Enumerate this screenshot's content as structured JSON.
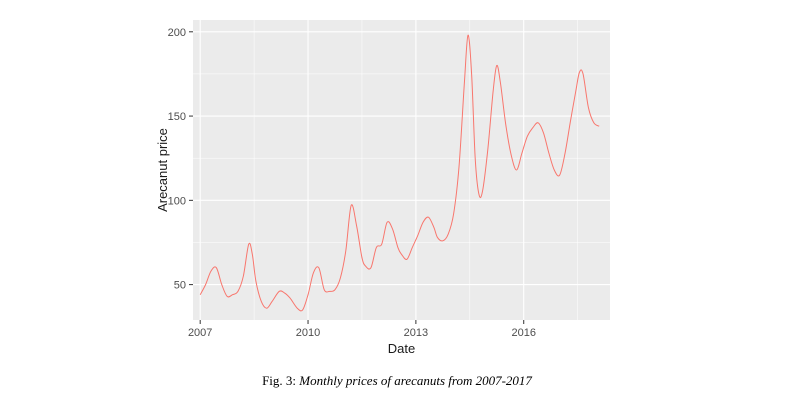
{
  "caption": {
    "label": "Fig. 3:",
    "text": "Monthly prices of arecanuts from 2007-2017"
  },
  "chart_data": {
    "type": "line",
    "title": "",
    "xlabel": "Date",
    "ylabel": "Arecanut price",
    "xlim": [
      2006.8,
      2018.4
    ],
    "ylim": [
      29,
      207
    ],
    "x_ticks": [
      2007,
      2010,
      2013,
      2016
    ],
    "x_tick_labels": [
      "2007",
      "2010",
      "2013",
      "2016"
    ],
    "y_ticks": [
      50,
      100,
      150,
      200
    ],
    "y_tick_labels": [
      "50",
      "100",
      "150",
      "200"
    ],
    "grid": true,
    "background": "#ebebeb",
    "grid_color": "#ffffff",
    "line_color": "#f8766d",
    "series": [
      {
        "x": [
          2007.0,
          2007.15,
          2007.3,
          2007.45,
          2007.6,
          2007.75,
          2007.9,
          2008.05,
          2008.2,
          2008.35,
          2008.45,
          2008.55,
          2008.7,
          2008.85,
          2009.0,
          2009.2,
          2009.35,
          2009.5,
          2009.7,
          2009.85,
          2010.0,
          2010.15,
          2010.3,
          2010.45,
          2010.6,
          2010.75,
          2010.9,
          2011.05,
          2011.2,
          2011.35,
          2011.5,
          2011.6,
          2011.75,
          2011.9,
          2012.05,
          2012.2,
          2012.35,
          2012.5,
          2012.6,
          2012.75,
          2012.9,
          2013.05,
          2013.2,
          2013.35,
          2013.5,
          2013.6,
          2013.75,
          2013.9,
          2014.05,
          2014.2,
          2014.35,
          2014.45,
          2014.55,
          2014.65,
          2014.75,
          2014.85,
          2015.0,
          2015.15,
          2015.25,
          2015.35,
          2015.5,
          2015.65,
          2015.8,
          2015.95,
          2016.1,
          2016.25,
          2016.4,
          2016.55,
          2016.7,
          2016.85,
          2017.0,
          2017.15,
          2017.3,
          2017.45,
          2017.55,
          2017.65,
          2017.8,
          2017.95,
          2018.1
        ],
        "y": [
          44,
          50,
          58,
          60,
          50,
          43,
          44,
          46,
          55,
          74,
          68,
          52,
          40,
          36,
          40,
          46,
          45,
          42,
          36,
          35,
          44,
          57,
          60,
          47,
          46,
          47,
          54,
          70,
          97,
          85,
          66,
          61,
          60,
          72,
          74,
          87,
          83,
          72,
          68,
          65,
          72,
          79,
          87,
          90,
          84,
          78,
          76,
          80,
          92,
          120,
          170,
          198,
          175,
          125,
          104,
          105,
          130,
          165,
          180,
          170,
          145,
          127,
          118,
          128,
          138,
          143,
          146,
          140,
          128,
          118,
          115,
          128,
          147,
          165,
          176,
          175,
          155,
          146,
          144
        ]
      }
    ]
  }
}
